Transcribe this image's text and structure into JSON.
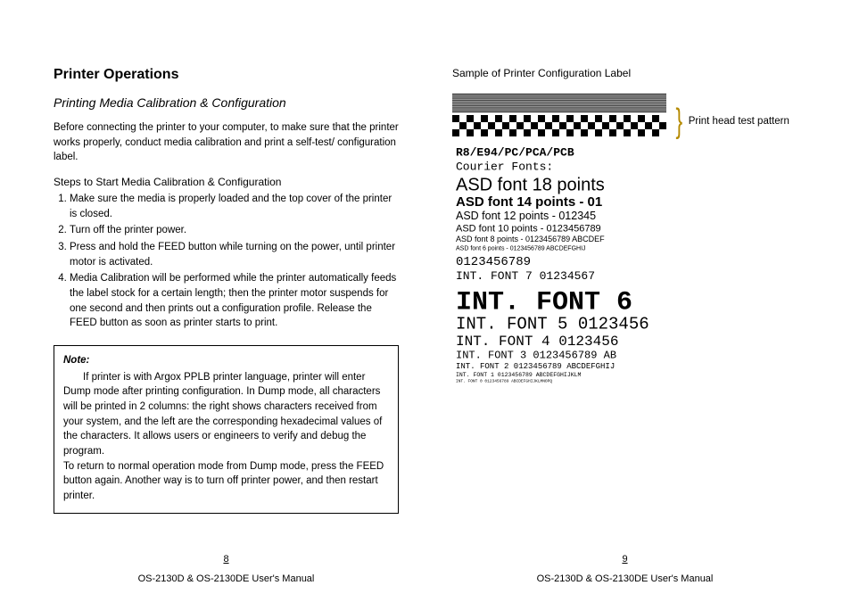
{
  "left": {
    "heading": "Printer Operations",
    "subheading": "Printing Media Calibration & Configuration",
    "intro": "Before connecting the printer to your computer, to make sure that the printer works properly, conduct media calibration and print a self-test/ configuration label.",
    "steps_heading": "Steps to Start Media Calibration & Configuration",
    "steps": [
      "Make sure the media is properly loaded and the top cover of the printer is closed.",
      "Turn off the printer power.",
      "Press and hold the FEED button while turning on the power, until printer motor is activated.",
      "Media Calibration will be performed while the printer automatically feeds the label stock for a certain length; then the printer motor suspends for one second and then prints out a configuration profile. Release the FEED button as soon as printer starts to print."
    ],
    "note_title": "Note:",
    "note_p1": "If printer is with Argox PPLB printer language, printer will enter Dump mode after printing configuration. In Dump mode, all characters will be printed in 2 columns: the right shows characters received from your system, and the left are the corresponding hexadecimal values of the characters. It allows users or engineers to verify and debug the program.",
    "note_p2": "To return to normal operation mode from Dump mode, press the FEED button again. Another way is to turn off printer power, and then restart printer.",
    "page_num": "8",
    "footer": "OS-2130D & OS-2130DE User's Manual"
  },
  "right": {
    "sample_caption": "Sample of Printer Configuration Label",
    "annotation": "Print head test pattern",
    "page_num": "9",
    "footer": "OS-2130D & OS-2130DE User's Manual",
    "label_font_lines": [
      {
        "text": "R8/E94/PC/PCA/PCB",
        "size": 13,
        "family": "monospace",
        "weight": "bold"
      },
      {
        "text": "Courier Fonts:",
        "size": 13,
        "family": "monospace",
        "weight": "normal"
      },
      {
        "text": "ASD font 18 points",
        "size": 20,
        "family": "sans",
        "weight": "normal"
      },
      {
        "text": "ASD font 14 points - 01",
        "size": 15,
        "family": "sans",
        "weight": "bold"
      },
      {
        "text": "ASD font 12 points - 012345",
        "size": 12.5,
        "family": "sans",
        "weight": "normal"
      },
      {
        "text": "ASD font 10 points - 0123456789",
        "size": 11,
        "family": "sans",
        "weight": "normal"
      },
      {
        "text": "ASD font 8 points - 0123456789 ABCDEF",
        "size": 9,
        "family": "sans",
        "weight": "normal"
      },
      {
        "text": "ASD font 6 points - 0123456789 ABCDEFGHIJ",
        "size": 7,
        "family": "sans",
        "weight": "normal"
      },
      {
        "text": "0123456789",
        "size": 14,
        "family": "monospace",
        "weight": "normal"
      },
      {
        "text": "INT. FONT 7  01234567",
        "size": 13,
        "family": "monospace",
        "weight": "normal"
      },
      {
        "text": "INT. FONT 6",
        "size": 30,
        "family": "monospace",
        "weight": "bold"
      },
      {
        "text": "INT. FONT 5  0123456",
        "size": 19,
        "family": "monospace",
        "weight": "normal"
      },
      {
        "text": "INT. FONT 4  0123456",
        "size": 16,
        "family": "monospace",
        "weight": "normal"
      },
      {
        "text": "INT. FONT 3  0123456789 AB",
        "size": 12,
        "family": "monospace",
        "weight": "normal"
      },
      {
        "text": "INT. FONT 2  0123456789 ABCDEFGHIJ",
        "size": 9,
        "family": "monospace",
        "weight": "normal"
      },
      {
        "text": "INT. FONT 1  0123456789 ABCDEFGHIJKLM",
        "size": 6.5,
        "family": "monospace",
        "weight": "normal"
      },
      {
        "text": "INT. FONT 0  0123456789 ABCDEFGHIJKLMNOPQ",
        "size": 4.5,
        "family": "monospace",
        "weight": "normal"
      }
    ]
  }
}
